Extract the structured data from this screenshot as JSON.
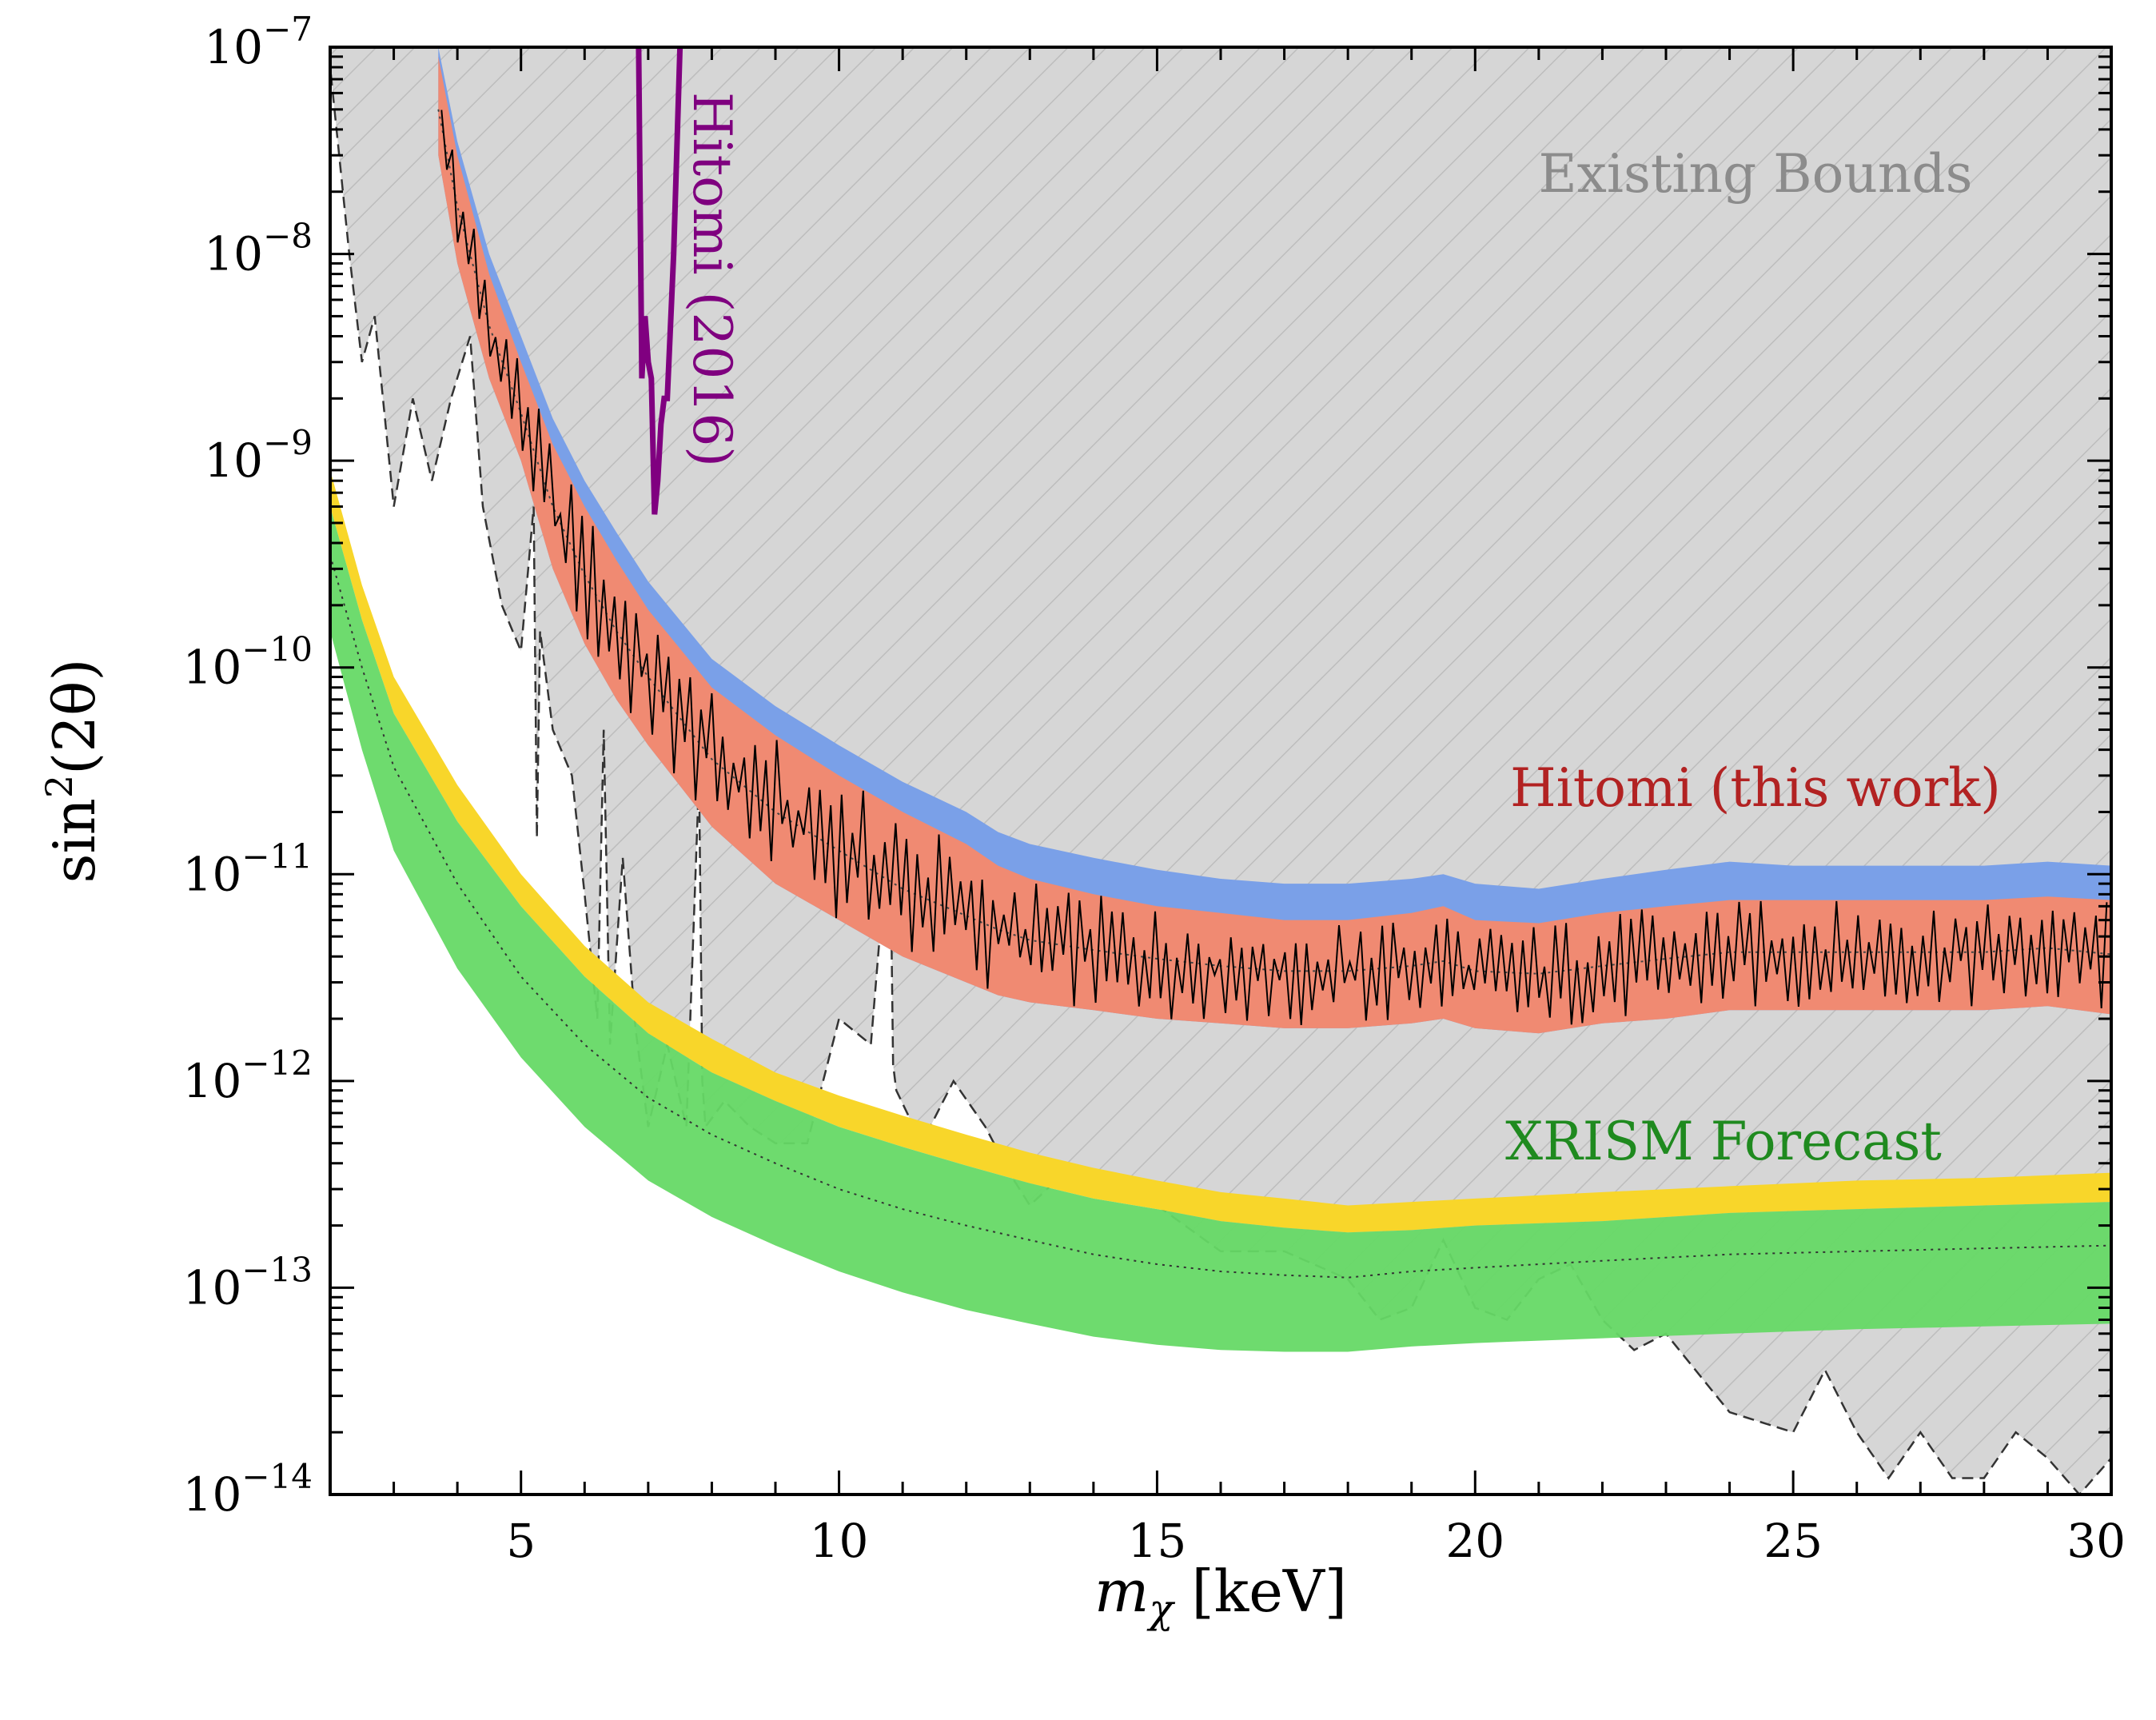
{
  "chart_data": {
    "type": "area",
    "xlabel": "m",
    "xlabel_subscript": "χ",
    "xlabel_unit": " [keV]",
    "ylabel": "sin",
    "ylabel_sup": "2",
    "ylabel_rest": "(2θ)",
    "xlim": [
      2,
      30
    ],
    "ylim_log10": [
      -14,
      -7
    ],
    "yscale": "log",
    "xticks": [
      5,
      10,
      15,
      20,
      25,
      30
    ],
    "yticks_log10": [
      -7,
      -8,
      -9,
      -10,
      -11,
      -12,
      -13,
      -14
    ],
    "ytick_base": "10",
    "grid": false,
    "annotations": [
      {
        "text": "Existing Bounds",
        "color": "#8c8c8c"
      },
      {
        "text": "Hitomi (this work)",
        "color": "#b22222"
      },
      {
        "text": "XRISM Forecast",
        "color": "#1f8a1f"
      },
      {
        "text": "Hitomi (2016)",
        "color": "#7f007f"
      }
    ],
    "existing_bounds": {
      "fill": "#d6d6d6",
      "x": [
        2.0,
        2.3,
        2.5,
        2.7,
        3.0,
        3.3,
        3.6,
        3.9,
        4.2,
        4.4,
        4.7,
        5.0,
        5.2,
        5.25,
        5.3,
        5.5,
        5.8,
        6.0,
        6.2,
        6.3,
        6.4,
        6.6,
        6.8,
        7.0,
        7.3,
        7.6,
        7.8,
        7.85,
        7.9,
        8.2,
        8.6,
        9.0,
        9.5,
        10.0,
        10.5,
        10.8,
        10.85,
        10.9,
        11.3,
        11.8,
        12.3,
        12.7,
        13.0,
        13.5,
        14.0,
        15.0,
        16.0,
        17.0,
        18.0,
        18.5,
        19.0,
        19.5,
        20.0,
        20.5,
        21.0,
        21.5,
        22.0,
        22.5,
        23.0,
        24.0,
        25.0,
        25.5,
        26.0,
        26.5,
        27.0,
        27.5,
        28.0,
        28.5,
        29.0,
        29.5,
        30.0
      ],
      "y": [
        8e-08,
        1e-08,
        3e-09,
        5e-09,
        6e-10,
        2e-09,
        8e-10,
        2e-09,
        4e-09,
        6e-10,
        2e-10,
        1.2e-10,
        6e-10,
        1.5e-11,
        1.5e-10,
        5e-11,
        3e-11,
        8e-12,
        2e-12,
        5e-11,
        1.5e-12,
        1.2e-11,
        1.8e-12,
        6e-13,
        1.5e-12,
        6e-13,
        3e-11,
        1e-12,
        6e-13,
        8e-13,
        6e-13,
        5e-13,
        5e-13,
        2e-12,
        1.5e-12,
        2e-11,
        1.2e-12,
        9e-13,
        5e-13,
        1e-12,
        6e-13,
        3.5e-13,
        2.5e-13,
        3.5e-13,
        3.5e-13,
        2.5e-13,
        1.5e-13,
        1.5e-13,
        1.1e-13,
        7e-14,
        8e-14,
        1.7e-13,
        8e-14,
        7e-14,
        1.1e-13,
        1.3e-13,
        7e-14,
        5e-14,
        6e-14,
        2.5e-14,
        2e-14,
        4e-14,
        2e-14,
        1.2e-14,
        2e-14,
        1.2e-14,
        1.2e-14,
        2e-14,
        1.5e-14,
        1e-14,
        1.5e-14
      ]
    },
    "hitomi_this_work": {
      "x": [
        3.7,
        4.0,
        4.5,
        5.0,
        5.5,
        6.0,
        6.5,
        7.0,
        8.0,
        9.0,
        10.0,
        11.0,
        12.0,
        12.5,
        13.0,
        14.0,
        15.0,
        16.0,
        17.0,
        18.0,
        19.0,
        19.5,
        20.0,
        21.0,
        22.0,
        23.0,
        24.0,
        25.0,
        26.0,
        27.0,
        28.0,
        29.0,
        30.0
      ],
      "upper_95": [
        1e-07,
        3.5e-08,
        1e-08,
        4e-09,
        1.6e-09,
        8e-10,
        4.5e-10,
        2.6e-10,
        1.1e-10,
        6.5e-11,
        4.2e-11,
        2.8e-11,
        2e-11,
        1.6e-11,
        1.4e-11,
        1.2e-11,
        1.05e-11,
        9.5e-12,
        9e-12,
        9e-12,
        9.5e-12,
        1e-11,
        9e-12,
        8.5e-12,
        9.5e-12,
        1.05e-11,
        1.15e-11,
        1.1e-11,
        1.1e-11,
        1.1e-11,
        1.1e-11,
        1.15e-11,
        1.1e-11
      ],
      "upper_68": [
        9e-08,
        3e-08,
        8e-09,
        3e-09,
        1.2e-09,
        6e-10,
        3.3e-10,
        1.9e-10,
        8e-11,
        4.7e-11,
        3e-11,
        2e-11,
        1.4e-11,
        1.1e-11,
        9.5e-12,
        8e-12,
        7e-12,
        6.5e-12,
        6e-12,
        6e-12,
        6.5e-12,
        7e-12,
        6e-12,
        5.8e-12,
        6.5e-12,
        7e-12,
        7.5e-12,
        7.5e-12,
        7.5e-12,
        7.5e-12,
        7.5e-12,
        7.8e-12,
        7.5e-12
      ],
      "lower_68": [
        3e-08,
        9e-09,
        2.5e-09,
        1e-09,
        3e-10,
        1.3e-10,
        7e-11,
        4.2e-11,
        1.7e-11,
        9e-12,
        6e-12,
        4e-12,
        3e-12,
        2.6e-12,
        2.4e-12,
        2.2e-12,
        2e-12,
        1.9e-12,
        1.8e-12,
        1.8e-12,
        1.9e-12,
        2e-12,
        1.8e-12,
        1.7e-12,
        1.9e-12,
        2e-12,
        2.2e-12,
        2.2e-12,
        2.2e-12,
        2.2e-12,
        2.2e-12,
        2.3e-12,
        2.1e-12
      ],
      "median": [
        5e-08,
        1.7e-08,
        4.5e-09,
        1.7e-09,
        6e-10,
        2.8e-10,
        1.5e-10,
        9e-11,
        3.6e-11,
        2e-11,
        1.3e-11,
        8.5e-12,
        6.3e-12,
        5.4e-12,
        4.8e-12,
        4.3e-12,
        3.9e-12,
        3.6e-12,
        3.4e-12,
        3.4e-12,
        3.6e-12,
        3.8e-12,
        3.4e-12,
        3.3e-12,
        3.6e-12,
        3.9e-12,
        4.2e-12,
        4.2e-12,
        4.2e-12,
        4.2e-12,
        4.2e-12,
        4.4e-12,
        4.1e-12
      ],
      "color_68": "#f08a72",
      "color_95": "#7aa0e8"
    },
    "hitomi_2016": {
      "x": [
        6.85,
        6.9,
        6.95,
        7.0,
        7.05,
        7.1,
        7.15,
        7.2,
        7.25,
        7.3,
        7.4,
        7.5
      ],
      "y": [
        1e-07,
        2.5e-09,
        5e-09,
        3e-09,
        2.5e-09,
        5.5e-10,
        8e-10,
        1.5e-09,
        2e-09,
        2e-09,
        1e-08,
        1e-07
      ],
      "color": "#800080"
    },
    "xrism_forecast": {
      "x": [
        2.0,
        2.5,
        3.0,
        4.0,
        5.0,
        6.0,
        7.0,
        8.0,
        9.0,
        10.0,
        11.0,
        12.0,
        13.0,
        14.0,
        15.0,
        16.0,
        17.0,
        18.0,
        19.0,
        20.0,
        22.0,
        24.0,
        26.0,
        28.0,
        30.0
      ],
      "upper_95": [
        9e-10,
        2.5e-10,
        9e-11,
        2.7e-11,
        1e-11,
        4.5e-12,
        2.4e-12,
        1.6e-12,
        1.1e-12,
        8.5e-13,
        6.8e-13,
        5.5e-13,
        4.5e-13,
        3.8e-13,
        3.3e-13,
        2.9e-13,
        2.7e-13,
        2.5e-13,
        2.6e-13,
        2.7e-13,
        2.9e-13,
        3.1e-13,
        3.3e-13,
        3.4e-13,
        3.6e-13
      ],
      "upper_68": [
        6e-10,
        1.7e-10,
        6e-11,
        1.8e-11,
        7e-12,
        3.2e-12,
        1.7e-12,
        1.1e-12,
        8e-13,
        6e-13,
        4.8e-13,
        3.9e-13,
        3.2e-13,
        2.7e-13,
        2.4e-13,
        2.1e-13,
        1.95e-13,
        1.85e-13,
        1.9e-13,
        2e-13,
        2.1e-13,
        2.3e-13,
        2.4e-13,
        2.5e-13,
        2.6e-13
      ],
      "lower_68": [
        1.5e-10,
        4e-11,
        1.3e-11,
        3.5e-12,
        1.3e-12,
        6e-13,
        3.3e-13,
        2.2e-13,
        1.6e-13,
        1.2e-13,
        9.5e-14,
        7.8e-14,
        6.7e-14,
        5.8e-14,
        5.3e-14,
        5e-14,
        4.9e-14,
        4.9e-14,
        5.2e-14,
        5.4e-14,
        5.7e-14,
        6e-14,
        6.3e-14,
        6.5e-14,
        6.7e-14
      ],
      "median": [
        3.5e-10,
        1e-10,
        3.3e-11,
        9e-12,
        3.2e-12,
        1.5e-12,
        8.3e-13,
        5.5e-13,
        4e-13,
        3e-13,
        2.4e-13,
        2e-13,
        1.7e-13,
        1.45e-13,
        1.3e-13,
        1.2e-13,
        1.15e-13,
        1.12e-13,
        1.2e-13,
        1.25e-13,
        1.35e-13,
        1.45e-13,
        1.5e-13,
        1.55e-13,
        1.6e-13
      ],
      "color_68": "#66d966",
      "color_95": "#f8d62a"
    }
  }
}
